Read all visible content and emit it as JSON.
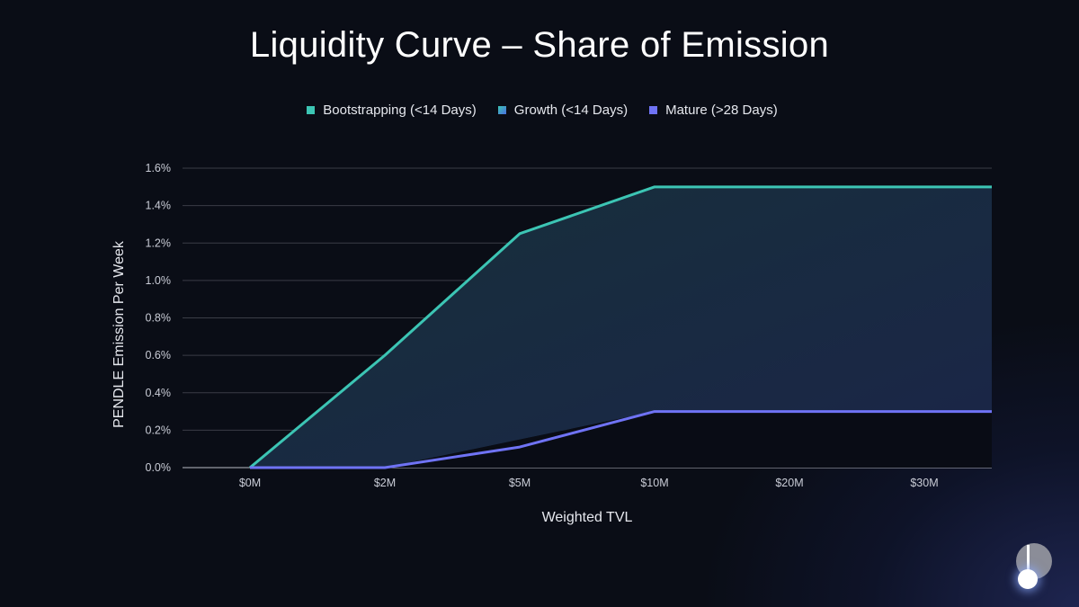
{
  "chart_data": {
    "type": "line",
    "title": "Liquidity Curve – Share of Emission",
    "xlabel": "Weighted TVL",
    "ylabel": "PENDLE Emission Per Week",
    "categories": [
      "$0M",
      "$2M",
      "$5M",
      "$10M",
      "$20M",
      "$30M"
    ],
    "yticks": [
      "0.0%",
      "0.2%",
      "0.4%",
      "0.6%",
      "0.8%",
      "1.0%",
      "1.2%",
      "1.4%",
      "1.6%"
    ],
    "ylim": [
      0,
      1.6
    ],
    "grid": true,
    "legend_position": "top",
    "series": [
      {
        "name": "Bootstrapping (<14 Days)",
        "color": "#3cc5b4",
        "values": [
          0,
          0.6,
          1.25,
          1.5,
          1.5,
          1.5
        ]
      },
      {
        "name": "Growth (<14 Days)",
        "color": "#3a8fd0",
        "values": [
          0,
          0,
          0.15,
          0.3,
          0.3,
          0.3
        ]
      },
      {
        "name": "Mature (>28 Days)",
        "color": "#6f73f5",
        "values": [
          0,
          0,
          0.11,
          0.3,
          0.3,
          0.3
        ]
      }
    ]
  },
  "colors": {
    "background": "#0a0d16",
    "grid": "#3a3d46",
    "area_fill": "#1a2a3a"
  },
  "logo": {
    "icon": "pendle-logo-icon"
  }
}
